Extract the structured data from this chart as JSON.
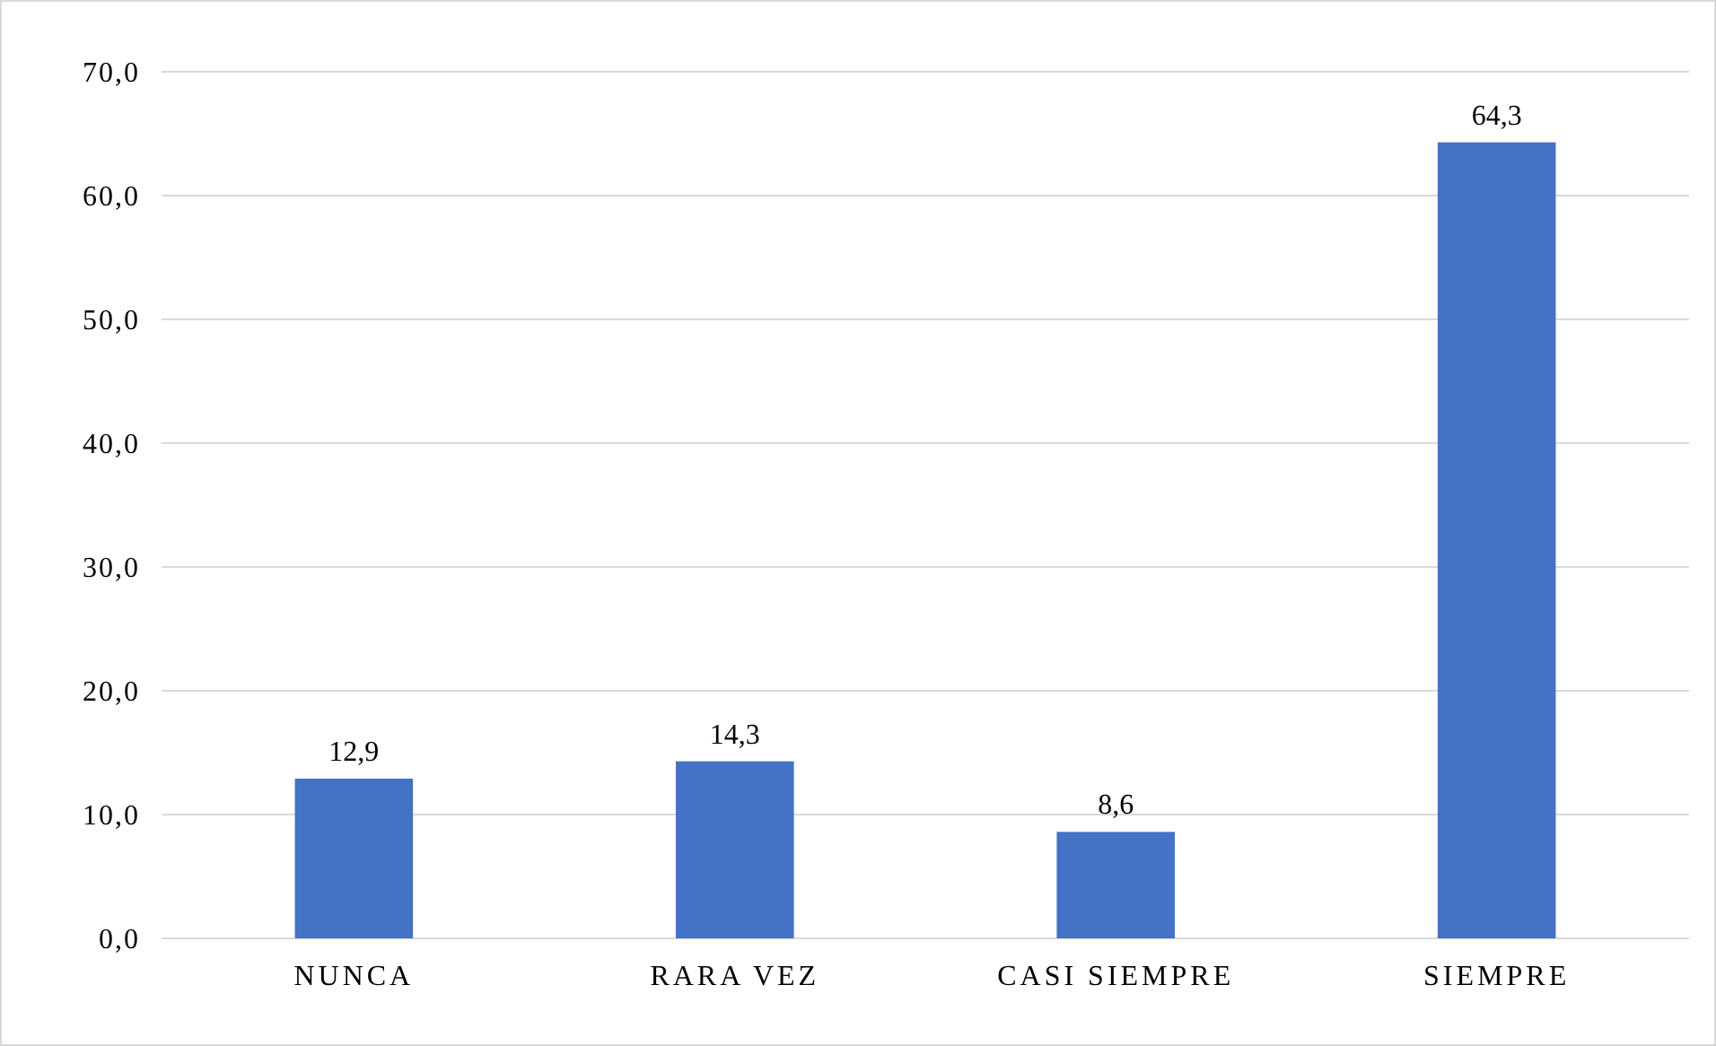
{
  "chart_data": {
    "type": "bar",
    "categories": [
      "NUNCA",
      "RARA VEZ",
      "CASI SIEMPRE",
      "SIEMPRE"
    ],
    "values": [
      12.9,
      14.3,
      8.6,
      64.3
    ],
    "value_labels": [
      "12,9",
      "14,3",
      "8,6",
      "64,3"
    ],
    "color": "#4472c4",
    "ylim": [
      0,
      70
    ],
    "yticks": [
      {
        "value": 0,
        "label": "0,0"
      },
      {
        "value": 10,
        "label": "10,0"
      },
      {
        "value": 20,
        "label": "20,0"
      },
      {
        "value": 30,
        "label": "30,0"
      },
      {
        "value": 40,
        "label": "40,0"
      },
      {
        "value": 50,
        "label": "50,0"
      },
      {
        "value": 60,
        "label": "60,0"
      },
      {
        "value": 70,
        "label": "70,0"
      }
    ],
    "grid": "y"
  }
}
